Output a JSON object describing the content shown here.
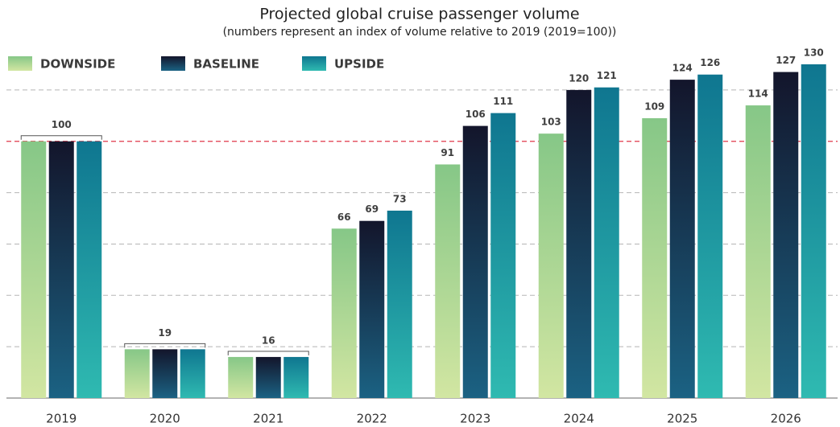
{
  "chart_data": {
    "type": "bar",
    "title": "Projected global cruise passenger volume",
    "subtitle": "(numbers represent an index of volume relative to 2019 (2019=100))",
    "categories": [
      "2019",
      "2020",
      "2021",
      "2022",
      "2023",
      "2024",
      "2025",
      "2026"
    ],
    "series": [
      {
        "name": "DOWNSIDE",
        "color": "#86c787",
        "color_bottom": "#d2e6a2",
        "values": [
          100,
          19,
          16,
          66,
          91,
          103,
          109,
          114
        ]
      },
      {
        "name": "BASELINE",
        "color": "#13152b",
        "color_bottom": "#1b6283",
        "values": [
          100,
          19,
          16,
          69,
          106,
          120,
          124,
          127
        ]
      },
      {
        "name": "UPSIDE",
        "color": "#0f7690",
        "color_bottom": "#2fbab1",
        "values": [
          100,
          19,
          16,
          73,
          111,
          121,
          126,
          130
        ]
      }
    ],
    "ylim": [
      0,
      135
    ],
    "yticks": [
      0,
      20,
      40,
      60,
      80,
      100,
      120
    ],
    "tick_labels": false,
    "grid": true,
    "reference_line": {
      "value": 100,
      "color": "#e0384a"
    }
  }
}
